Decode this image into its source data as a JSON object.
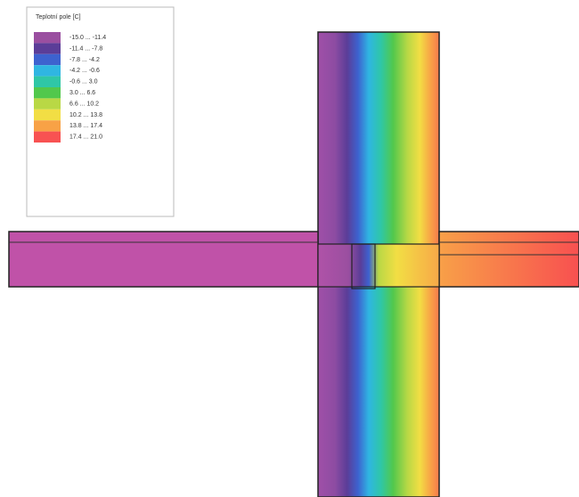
{
  "legend": {
    "title": "Teplotní pole [C]",
    "items": [
      {
        "label": "-15.0 ... -11.4",
        "color": "#9a4fa0"
      },
      {
        "label": "-11.4 ... -7.8",
        "color": "#5b3d98"
      },
      {
        "label": "-7.8 ... -4.2",
        "color": "#3d62cf"
      },
      {
        "label": "-4.2 ... -0.6",
        "color": "#2fb6e2"
      },
      {
        "label": "-0.6 ... 3.0",
        "color": "#2fc7a6"
      },
      {
        "label": "3.0 ... 6.6",
        "color": "#52c84c"
      },
      {
        "label": "6.6 ... 10.2",
        "color": "#b9d845"
      },
      {
        "label": "10.2 ... 13.8",
        "color": "#f2de44"
      },
      {
        "label": "13.8 ... 17.4",
        "color": "#f8a246"
      },
      {
        "label": "17.4 ... 21.0",
        "color": "#f85252"
      }
    ]
  }
}
